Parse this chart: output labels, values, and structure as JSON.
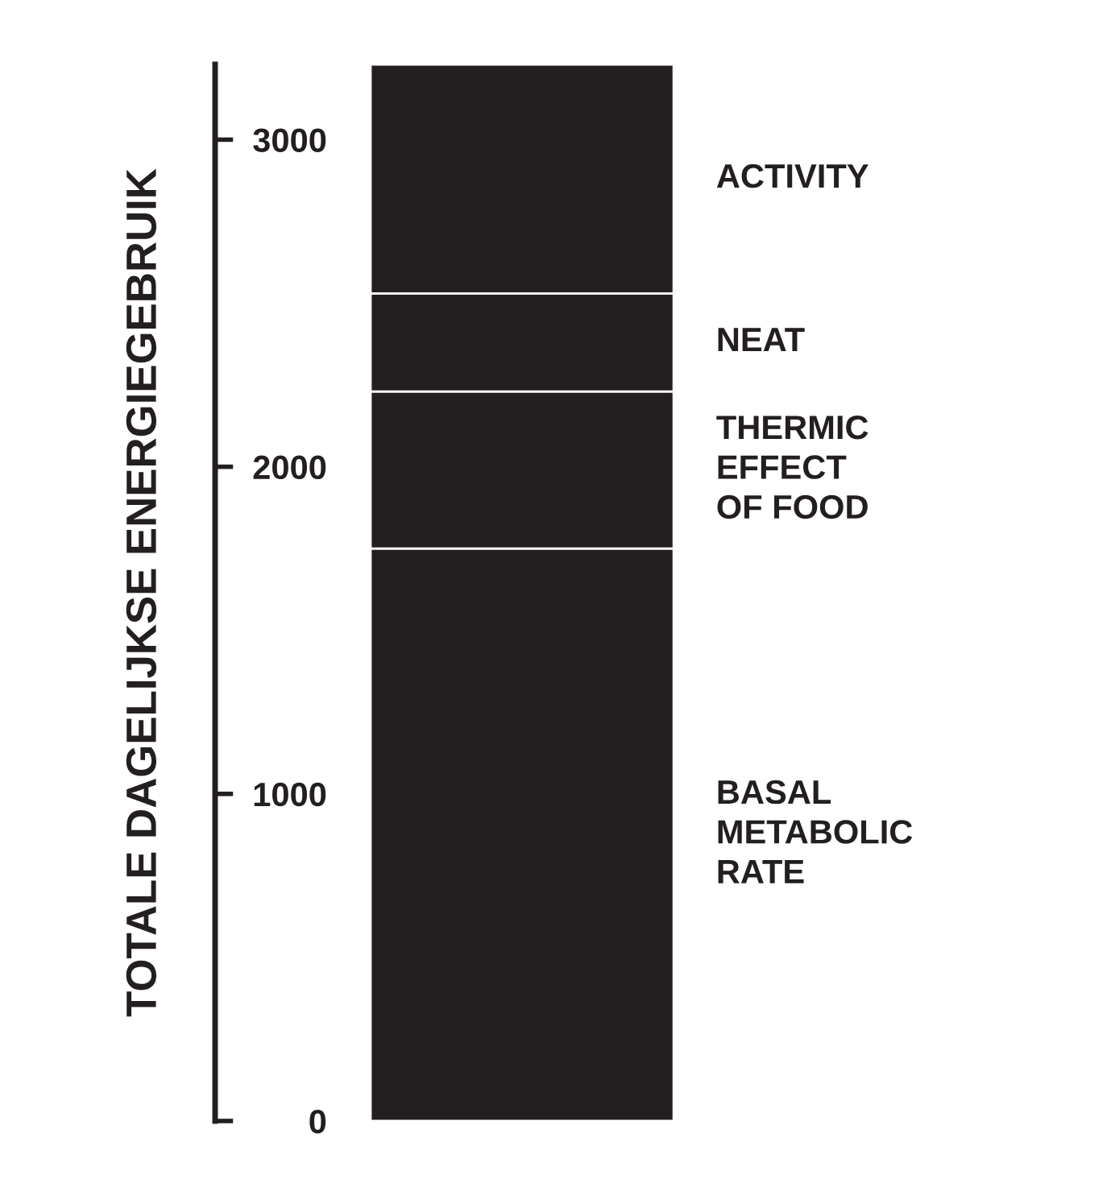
{
  "chart_data": {
    "type": "bar",
    "stacked": true,
    "ylabel": "TOTALE DAGELIJKSE ENERGIEGEBRUIK",
    "categories": [
      null
    ],
    "series": [
      {
        "name": "BASAL\nMETABOLIC\nRATE",
        "color": "#231f20",
        "values": [
          1750
        ]
      },
      {
        "name": "THERMIC\nEFFECT\nOF FOOD",
        "color": "#231f20",
        "values": [
          480
        ]
      },
      {
        "name": "NEAT",
        "color": "#231f20",
        "values": [
          300
        ]
      },
      {
        "name": "ACTIVITY",
        "color": "#231f20",
        "values": [
          700
        ]
      }
    ],
    "ylim": [
      0,
      3230
    ],
    "yticks": [
      0,
      1000,
      2000,
      3000
    ],
    "grid": false,
    "legend": false
  }
}
